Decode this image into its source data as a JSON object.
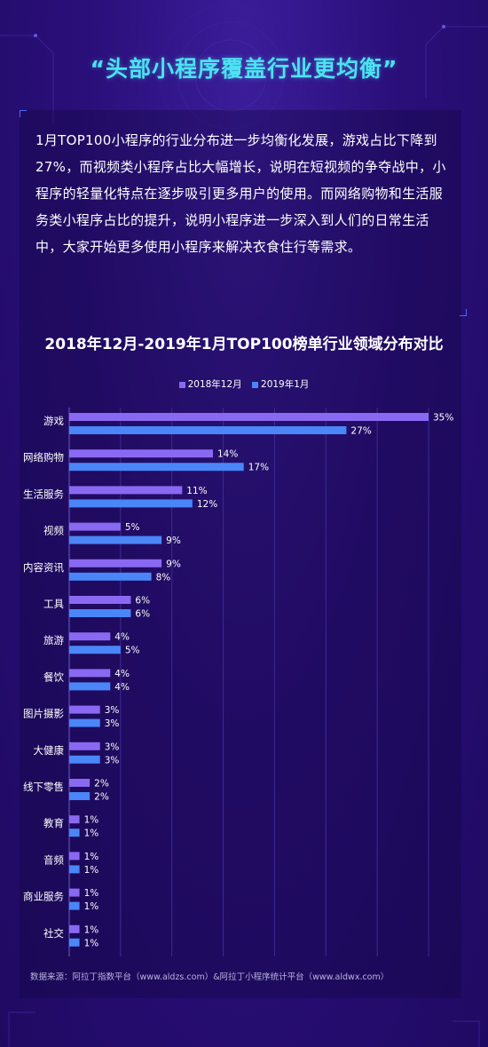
{
  "headline": "“头部小程序覆盖行业更均衡”",
  "intro": "1月TOP100小程序的行业分布进一步均衡化发展，游戏占比下降到27%，而视频类小程序占比大幅增长，说明在短视频的争夺战中，小程序的轻量化特点在逐步吸引更多用户的使用。而网络购物和生活服务类小程序占比的提升，说明小程序进一步深入到人们的日常生活中，大家开始更多使用小程序来解决衣食住行等需求。",
  "source": "数据来源：阿拉丁指数平台（www.aldzs.com）&阿拉丁小程序统计平台（www.aldwx.com）",
  "colors": {
    "background": "#2a0f7a",
    "headline": "#4be3f2",
    "series_dec": "#8a69f2",
    "series_jan": "#4a86f7"
  },
  "chart_data": {
    "type": "bar",
    "orientation": "horizontal",
    "title": "2018年12月-2019年1月TOP100榜单行业领域分布对比",
    "legend_position": "top",
    "grid": true,
    "xlim": [
      0,
      35
    ],
    "categories": [
      "游戏",
      "网络购物",
      "生活服务",
      "视频",
      "内容资讯",
      "工具",
      "旅游",
      "餐饮",
      "图片摄影",
      "大健康",
      "线下零售",
      "教育",
      "音频",
      "商业服务",
      "社交"
    ],
    "series": [
      {
        "name": "2018年12月",
        "values": [
          35,
          14,
          11,
          5,
          9,
          6,
          4,
          4,
          3,
          3,
          2,
          1,
          1,
          1,
          1
        ]
      },
      {
        "name": "2019年1月",
        "values": [
          27,
          17,
          12,
          9,
          8,
          6,
          5,
          4,
          3,
          3,
          2,
          1,
          1,
          1,
          1
        ]
      }
    ]
  }
}
